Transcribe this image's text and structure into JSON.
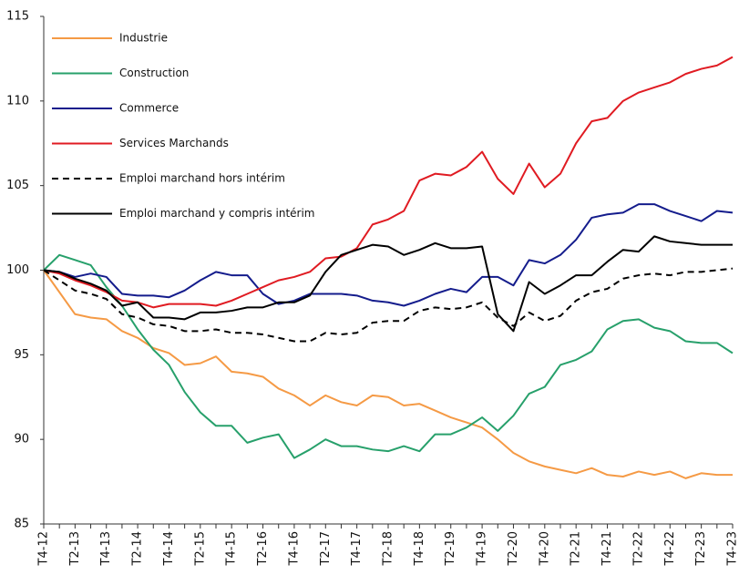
{
  "chart_data": {
    "type": "line",
    "categories": [
      "T4-12",
      null,
      "T2-13",
      null,
      "T4-13",
      null,
      "T2-14",
      null,
      "T4-14",
      null,
      "T2-15",
      null,
      "T4-15",
      null,
      "T2-16",
      null,
      "T4-16",
      null,
      "T2-17",
      null,
      "T4-17",
      null,
      "T2-18",
      null,
      "T4-18",
      null,
      "T2-19",
      null,
      "T4-19",
      null,
      "T2-20",
      null,
      "T4-20",
      null,
      "T2-21",
      null,
      "T4-21",
      null,
      "T2-22",
      null,
      "T4-22",
      null,
      "T2-23",
      null,
      "T4-23"
    ],
    "ylim": [
      85,
      115
    ],
    "yticks": [
      85,
      90,
      95,
      100,
      105,
      110,
      115
    ],
    "series": [
      {
        "name": "Industrie",
        "color": "#f59a45",
        "dash": false,
        "values": [
          100,
          98.7,
          97.4,
          97.2,
          97.1,
          96.4,
          96.0,
          95.4,
          95.1,
          94.4,
          94.5,
          94.9,
          94.0,
          93.9,
          93.7,
          93.0,
          92.6,
          92.0,
          92.6,
          92.2,
          92.0,
          92.6,
          92.5,
          92.0,
          92.1,
          91.7,
          91.3,
          91.0,
          90.7,
          90.0,
          89.2,
          88.7,
          88.4,
          88.2,
          88.0,
          88.3,
          87.9,
          87.8,
          88.1,
          87.9,
          88.1,
          87.7,
          88.0,
          87.9,
          87.9
        ]
      },
      {
        "name": "Construction",
        "color": "#27a06b",
        "dash": false,
        "values": [
          100,
          100.9,
          100.6,
          100.3,
          99.0,
          97.9,
          96.5,
          95.3,
          94.4,
          92.8,
          91.6,
          90.8,
          90.8,
          89.8,
          90.1,
          90.3,
          88.9,
          89.4,
          90.0,
          89.6,
          89.6,
          89.4,
          89.3,
          89.6,
          89.3,
          90.3,
          90.3,
          90.7,
          91.3,
          90.5,
          91.4,
          92.7,
          93.1,
          94.4,
          94.7,
          95.2,
          96.5,
          97.0,
          97.1,
          96.6,
          96.4,
          95.8,
          95.7,
          95.7,
          95.1
        ]
      },
      {
        "name": "Commerce",
        "color": "#141c8c",
        "dash": false,
        "values": [
          100,
          99.9,
          99.6,
          99.8,
          99.6,
          98.6,
          98.5,
          98.5,
          98.4,
          98.8,
          99.4,
          99.9,
          99.7,
          99.7,
          98.6,
          98.0,
          98.2,
          98.6,
          98.6,
          98.6,
          98.5,
          98.2,
          98.1,
          97.9,
          98.2,
          98.6,
          98.9,
          98.7,
          99.6,
          99.6,
          99.1,
          100.6,
          100.4,
          100.9,
          101.8,
          103.1,
          103.3,
          103.4,
          103.9,
          103.9,
          103.5,
          103.2,
          102.9,
          103.5,
          103.4
        ]
      },
      {
        "name": "Services Marchands",
        "color": "#e01b22",
        "dash": false,
        "values": [
          100,
          99.8,
          99.4,
          99.1,
          98.7,
          98.2,
          98.1,
          97.8,
          98.0,
          98.0,
          98.0,
          97.9,
          98.2,
          98.6,
          99.0,
          99.4,
          99.6,
          99.9,
          100.7,
          100.8,
          101.3,
          102.7,
          103.0,
          103.5,
          105.3,
          105.7,
          105.6,
          106.1,
          107.0,
          105.4,
          104.5,
          106.3,
          104.9,
          105.7,
          107.5,
          108.8,
          109.0,
          110.0,
          110.5,
          110.8,
          111.1,
          111.6,
          111.9,
          112.1,
          112.6
        ]
      },
      {
        "name": "Emploi marchand hors intérim",
        "color": "#000000",
        "dash": true,
        "values": [
          100,
          99.4,
          98.8,
          98.6,
          98.3,
          97.4,
          97.2,
          96.8,
          96.7,
          96.4,
          96.4,
          96.5,
          96.3,
          96.3,
          96.2,
          96.0,
          95.8,
          95.8,
          96.3,
          96.2,
          96.3,
          96.9,
          97.0,
          97.0,
          97.6,
          97.8,
          97.7,
          97.8,
          98.1,
          97.2,
          96.7,
          97.5,
          97.0,
          97.3,
          98.2,
          98.7,
          98.9,
          99.5,
          99.7,
          99.8,
          99.7,
          99.9,
          99.9,
          100.0,
          100.1
        ]
      },
      {
        "name": "Emploi marchand y compris intérim",
        "color": "#000000",
        "dash": false,
        "values": [
          100,
          99.9,
          99.5,
          99.2,
          98.8,
          97.9,
          98.1,
          97.2,
          97.2,
          97.1,
          97.5,
          97.5,
          97.6,
          97.8,
          97.8,
          98.1,
          98.1,
          98.5,
          99.9,
          100.9,
          101.2,
          101.5,
          101.4,
          100.9,
          101.2,
          101.6,
          101.3,
          101.3,
          101.4,
          97.4,
          96.4,
          99.3,
          98.6,
          99.1,
          99.7,
          99.7,
          100.5,
          101.2,
          101.1,
          102.0,
          101.7,
          101.6,
          101.5,
          101.5,
          101.5
        ]
      }
    ]
  }
}
